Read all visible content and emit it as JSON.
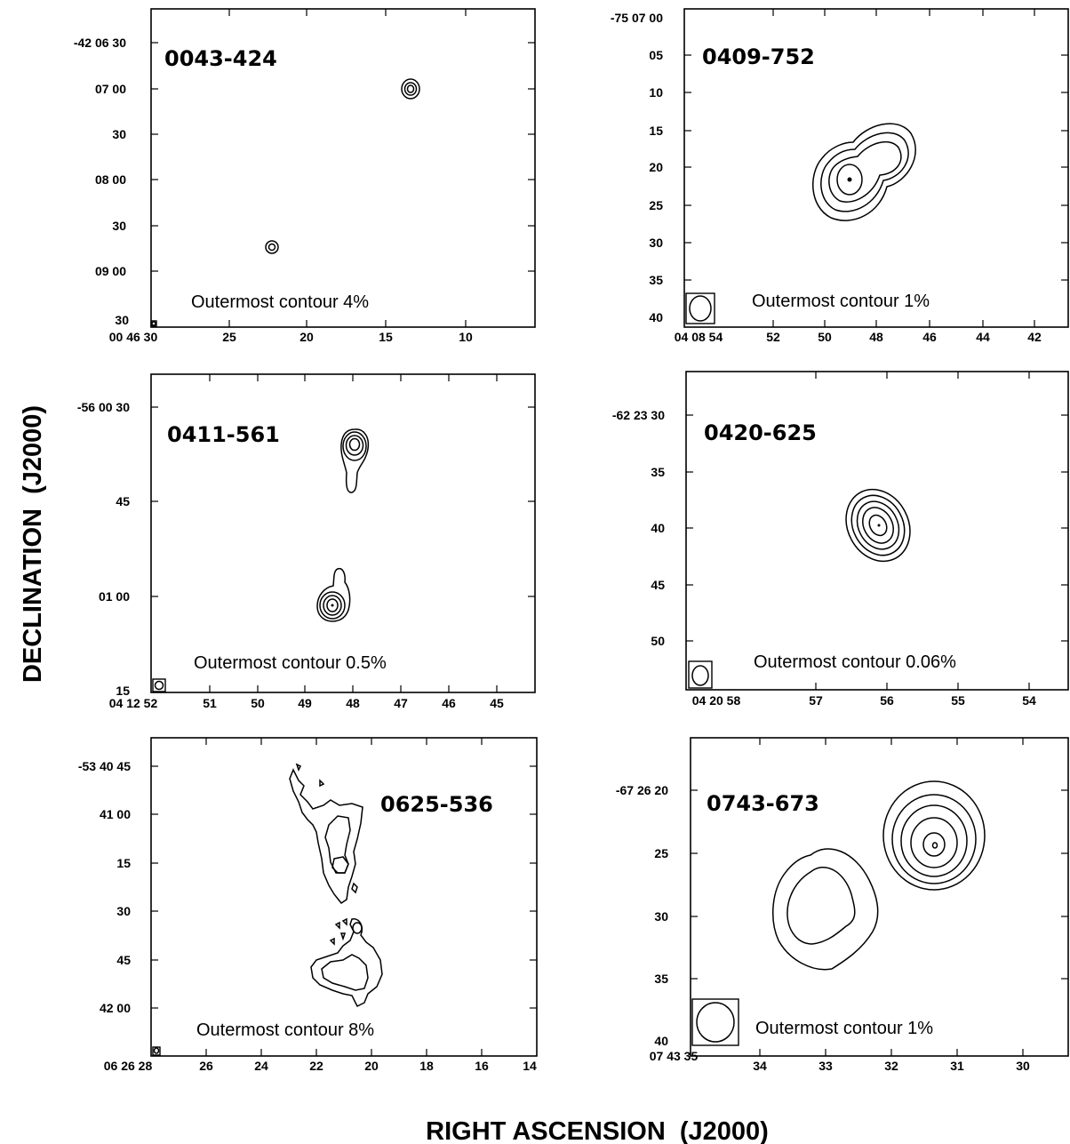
{
  "figure": {
    "xlabel": "RIGHT ASCENSION  (J2000)",
    "ylabel": "DECLINATION  (J2000)"
  },
  "panels": [
    {
      "id": "p1",
      "name": "0043-424",
      "note": "Outermost contour 4%",
      "y_ticks": [
        "-42 06 30",
        "07 00",
        "30",
        "08 00",
        "30",
        "09 00",
        "30"
      ],
      "x_ticks": [
        "00 46 30",
        "25",
        "20",
        "15",
        "10"
      ]
    },
    {
      "id": "p2",
      "name": "0409-752",
      "note": "Outermost contour 1%",
      "y_ticks": [
        "-75 07 00",
        "05",
        "10",
        "15",
        "20",
        "25",
        "30",
        "35",
        "40"
      ],
      "x_ticks": [
        "04 08 54",
        "52",
        "50",
        "48",
        "46",
        "44",
        "42"
      ]
    },
    {
      "id": "p3",
      "name": "0411-561",
      "note": "Outermost contour 0.5%",
      "y_ticks": [
        "-56 00 30",
        "45",
        "01 00",
        "15"
      ],
      "x_ticks": [
        "04 12 52",
        "51",
        "50",
        "49",
        "48",
        "47",
        "46",
        "45"
      ]
    },
    {
      "id": "p4",
      "name": "0420-625",
      "note": "Outermost contour 0.06%",
      "y_ticks": [
        "-62 23 30",
        "35",
        "40",
        "45",
        "50"
      ],
      "x_ticks": [
        "04 20 58",
        "57",
        "56",
        "55",
        "54"
      ]
    },
    {
      "id": "p5",
      "name": "0625-536",
      "note": "Outermost contour 8%",
      "y_ticks": [
        "-53 40 45",
        "41 00",
        "15",
        "30",
        "45",
        "42 00"
      ],
      "x_ticks": [
        "06 26 28",
        "26",
        "24",
        "22",
        "20",
        "18",
        "16",
        "14"
      ]
    },
    {
      "id": "p6",
      "name": "0743-673",
      "note": "Outermost contour 1%",
      "y_ticks": [
        "-67 26 20",
        "25",
        "30",
        "35",
        "40"
      ],
      "x_ticks": [
        "07 43 35",
        "34",
        "33",
        "32",
        "31",
        "30"
      ]
    }
  ]
}
